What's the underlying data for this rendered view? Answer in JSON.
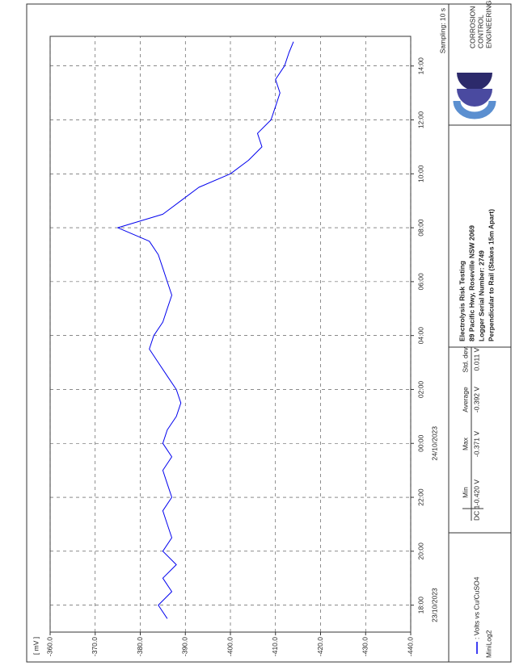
{
  "chart_data": {
    "type": "line",
    "x": [
      17.5,
      18,
      18.5,
      19,
      19.5,
      20,
      20.5,
      21,
      21.5,
      22,
      22.5,
      23,
      23.5,
      24,
      24.5,
      25,
      25.5,
      26,
      26.5,
      27,
      27.5,
      28,
      28.5,
      29,
      29.5,
      30,
      30.5,
      31,
      31.5,
      32,
      32.5,
      33,
      33.5,
      34,
      34.5,
      35,
      35.5,
      36,
      36.5,
      37,
      37.5,
      38,
      38.5,
      38.9
    ],
    "series": [
      {
        "name": ": Volts vs Cu/CuSO4",
        "color": "#0000ee",
        "values": [
          -386,
          -384,
          -387,
          -385,
          -388,
          -385,
          -387,
          -386,
          -385,
          -387,
          -386,
          -385,
          -387,
          -385,
          -386,
          -388,
          -389,
          -388,
          -386,
          -384,
          -382,
          -383,
          -385,
          -386,
          -387,
          -386,
          -385,
          -384,
          -382,
          -375,
          -385,
          -389,
          -393,
          -400,
          -404,
          -407,
          -406,
          -409,
          -410,
          -411,
          -410,
          -412,
          -413,
          -414
        ]
      }
    ],
    "xlim": [
      17,
      39.1
    ],
    "xticks": [
      {
        "value": 18,
        "label": "18:00"
      },
      {
        "value": 20,
        "label": "20:00"
      },
      {
        "value": 22,
        "label": "22:00"
      },
      {
        "value": 24,
        "label": "00:00"
      },
      {
        "value": 26,
        "label": "02:00"
      },
      {
        "value": 28,
        "label": "04:00"
      },
      {
        "value": 30,
        "label": "06:00"
      },
      {
        "value": 32,
        "label": "08:00"
      },
      {
        "value": 34,
        "label": "10:00"
      },
      {
        "value": 36,
        "label": "12:00"
      },
      {
        "value": 38,
        "label": "14:00"
      }
    ],
    "ylim": [
      -440,
      -360
    ],
    "yticks": [
      {
        "value": -360,
        "label": "-360.0"
      },
      {
        "value": -370,
        "label": "-370.0"
      },
      {
        "value": -380,
        "label": "-380.0"
      },
      {
        "value": -390,
        "label": "-390.0"
      },
      {
        "value": -400,
        "label": "-400.0"
      },
      {
        "value": -410,
        "label": "-410.0"
      },
      {
        "value": -420,
        "label": "-420.0"
      },
      {
        "value": -430,
        "label": "-430.0"
      },
      {
        "value": -440,
        "label": "-440.0"
      }
    ],
    "y_label": "[ mV ]",
    "grid": true,
    "date_labels": [
      {
        "value": 18,
        "label": "23/10/2023"
      },
      {
        "value": 24,
        "label": "24/10/2023"
      }
    ],
    "sampling": "Sampling: 10 s",
    "title_block": [
      "Electrolysis Risk Testing",
      "89 Pacific Hwy, Roseville NSW 2069",
      "Logger Serial Number: 2749",
      "Perpendicular to Rail (Stakes 15m Apart)"
    ],
    "stats": {
      "header": [
        "Min",
        "Max",
        "Average",
        "Std. dev."
      ],
      "row_label": "DC 1",
      "values": [
        "-0.420 V",
        "-0.371 V",
        "-0.392 V",
        "0.011 V"
      ]
    },
    "logo_text": [
      "CORROSION",
      "CONTROL",
      "ENGINEERING"
    ],
    "footer": "MiniLog2"
  }
}
